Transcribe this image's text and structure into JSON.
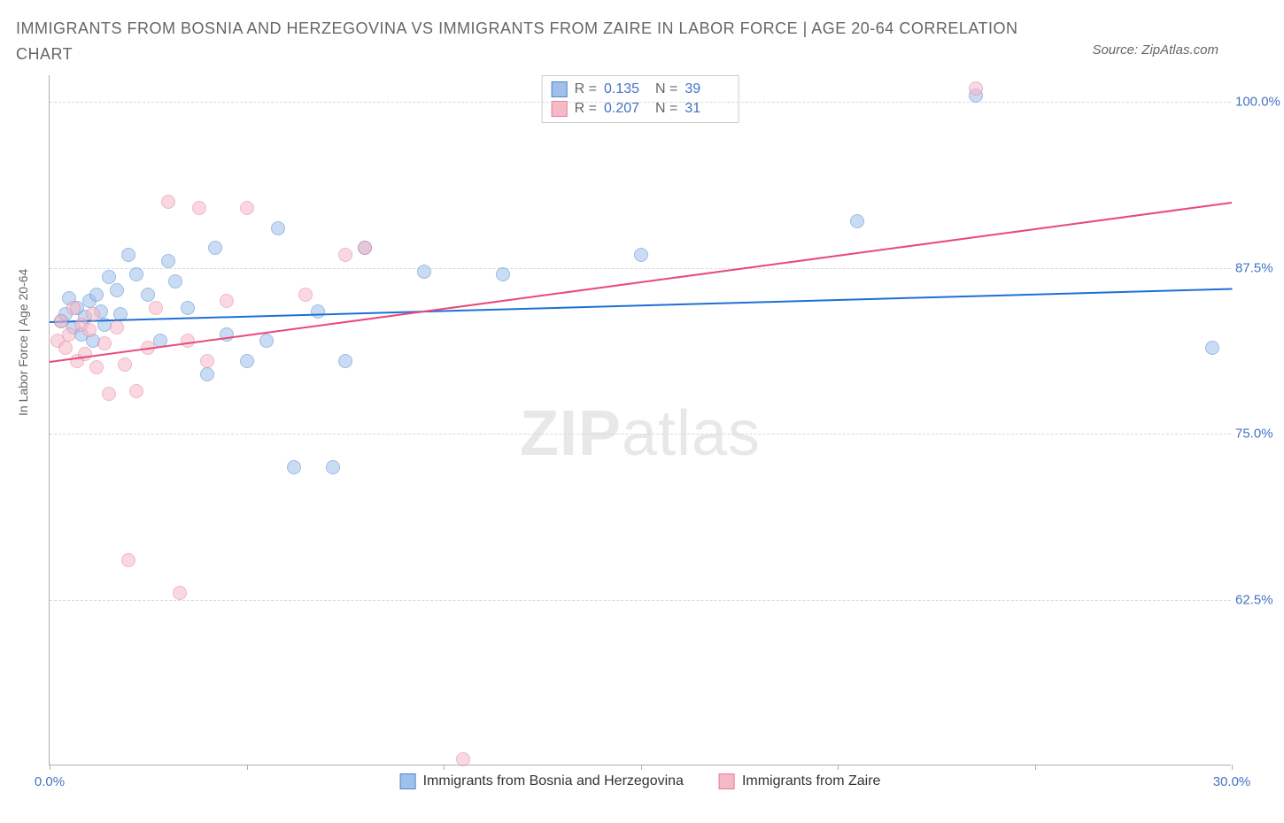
{
  "title": "IMMIGRANTS FROM BOSNIA AND HERZEGOVINA VS IMMIGRANTS FROM ZAIRE IN LABOR FORCE | AGE 20-64 CORRELATION CHART",
  "source": "Source: ZipAtlas.com",
  "watermark_bold": "ZIP",
  "watermark_light": "atlas",
  "y_axis_title": "In Labor Force | Age 20-64",
  "chart": {
    "type": "scatter",
    "xlim": [
      0,
      30
    ],
    "ylim": [
      50,
      102
    ],
    "x_ticks": [
      0,
      5,
      10,
      15,
      20,
      25,
      30
    ],
    "x_tick_labels": [
      "0.0%",
      "",
      "",
      "",
      "",
      "",
      "30.0%"
    ],
    "y_ticks": [
      62.5,
      75.0,
      87.5,
      100.0
    ],
    "y_tick_labels": [
      "62.5%",
      "75.0%",
      "87.5%",
      "100.0%"
    ],
    "background_color": "#ffffff",
    "grid_color": "#d8d8d8",
    "axis_color": "#b0b0b0",
    "text_color": "#666666",
    "tick_label_color": "#4472c4",
    "marker_size": 16,
    "marker_opacity": 0.55,
    "series": [
      {
        "name": "Immigrants from Bosnia and Herzegovina",
        "fill_color": "#9fc0ea",
        "stroke_color": "#4f87cc",
        "line_color": "#1f6fd4",
        "R": "0.135",
        "N": "39",
        "trend": {
          "x1": 0,
          "y1": 83.5,
          "x2": 30,
          "y2": 86.0
        },
        "points": [
          [
            0.3,
            83.5
          ],
          [
            0.4,
            84.0
          ],
          [
            0.5,
            85.2
          ],
          [
            0.6,
            83.0
          ],
          [
            0.7,
            84.5
          ],
          [
            0.8,
            82.5
          ],
          [
            0.9,
            83.8
          ],
          [
            1.0,
            85.0
          ],
          [
            1.1,
            82.0
          ],
          [
            1.2,
            85.5
          ],
          [
            1.3,
            84.2
          ],
          [
            1.4,
            83.2
          ],
          [
            1.5,
            86.8
          ],
          [
            1.7,
            85.8
          ],
          [
            1.8,
            84.0
          ],
          [
            2.0,
            88.5
          ],
          [
            2.2,
            87.0
          ],
          [
            2.5,
            85.5
          ],
          [
            2.8,
            82.0
          ],
          [
            3.0,
            88.0
          ],
          [
            3.2,
            86.5
          ],
          [
            3.5,
            84.5
          ],
          [
            4.0,
            79.5
          ],
          [
            4.2,
            89.0
          ],
          [
            4.5,
            82.5
          ],
          [
            5.0,
            80.5
          ],
          [
            5.5,
            82.0
          ],
          [
            5.8,
            90.5
          ],
          [
            6.2,
            72.5
          ],
          [
            6.8,
            84.2
          ],
          [
            7.2,
            72.5
          ],
          [
            7.5,
            80.5
          ],
          [
            8.0,
            89.0
          ],
          [
            9.5,
            87.2
          ],
          [
            11.5,
            87.0
          ],
          [
            15.0,
            88.5
          ],
          [
            20.5,
            91.0
          ],
          [
            23.5,
            100.5
          ],
          [
            29.5,
            81.5
          ]
        ]
      },
      {
        "name": "Immigrants from Zaire",
        "fill_color": "#f6b9c8",
        "stroke_color": "#e57d9a",
        "line_color": "#e84a7a",
        "R": "0.207",
        "N": "31",
        "trend": {
          "x1": 0,
          "y1": 80.5,
          "x2": 30,
          "y2": 92.5
        },
        "points": [
          [
            0.2,
            82.0
          ],
          [
            0.3,
            83.5
          ],
          [
            0.4,
            81.5
          ],
          [
            0.5,
            82.5
          ],
          [
            0.6,
            84.5
          ],
          [
            0.7,
            80.5
          ],
          [
            0.8,
            83.2
          ],
          [
            0.9,
            81.0
          ],
          [
            1.0,
            82.8
          ],
          [
            1.1,
            84.0
          ],
          [
            1.2,
            80.0
          ],
          [
            1.4,
            81.8
          ],
          [
            1.5,
            78.0
          ],
          [
            1.7,
            83.0
          ],
          [
            1.9,
            80.2
          ],
          [
            2.0,
            65.5
          ],
          [
            2.2,
            78.2
          ],
          [
            2.5,
            81.5
          ],
          [
            2.7,
            84.5
          ],
          [
            3.0,
            92.5
          ],
          [
            3.3,
            63.0
          ],
          [
            3.5,
            82.0
          ],
          [
            3.8,
            92.0
          ],
          [
            4.0,
            80.5
          ],
          [
            4.5,
            85.0
          ],
          [
            5.0,
            92.0
          ],
          [
            6.5,
            85.5
          ],
          [
            7.5,
            88.5
          ],
          [
            8.0,
            89.0
          ],
          [
            10.5,
            50.5
          ],
          [
            23.5,
            101.0
          ]
        ]
      }
    ]
  },
  "stats_legend": {
    "r_label": "R =",
    "n_label": "N ="
  }
}
